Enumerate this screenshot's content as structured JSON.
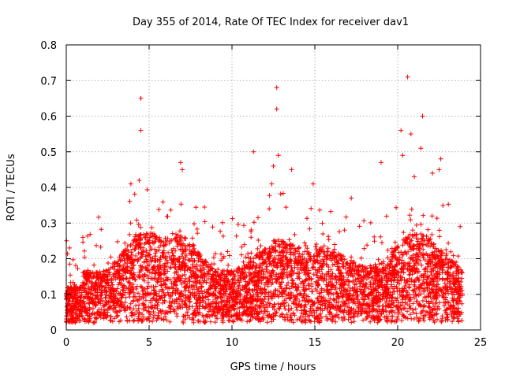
{
  "chart_data": {
    "type": "scatter",
    "title": "Day 355 of 2014, Rate Of TEC Index for receiver dav1",
    "xlabel": "GPS time / hours",
    "ylabel": "ROTI / TECUs",
    "xlim": [
      0,
      25
    ],
    "ylim": [
      0,
      0.8
    ],
    "xticks": [
      0,
      5,
      10,
      15,
      20,
      25
    ],
    "yticks": [
      0,
      0.1,
      0.2,
      0.3,
      0.4,
      0.5,
      0.6,
      0.7,
      0.8
    ],
    "xtick_labels": [
      "0",
      "5",
      "10",
      "15",
      "20",
      "25"
    ],
    "ytick_labels": [
      "0",
      "0.1",
      "0.2",
      "0.3",
      "0.4",
      "0.5",
      "0.6",
      "0.7",
      "0.8"
    ],
    "grid": true,
    "marker": "plus",
    "color": "#ff0000",
    "x_range_hours": [
      0,
      23.9
    ],
    "point_count": 6500,
    "notable_outliers": [
      {
        "x": 4.5,
        "y": 0.65
      },
      {
        "x": 4.5,
        "y": 0.56
      },
      {
        "x": 12.7,
        "y": 0.68
      },
      {
        "x": 12.7,
        "y": 0.62
      },
      {
        "x": 20.6,
        "y": 0.71
      },
      {
        "x": 21.5,
        "y": 0.6
      },
      {
        "x": 20.2,
        "y": 0.56
      },
      {
        "x": 20.8,
        "y": 0.55
      },
      {
        "x": 11.3,
        "y": 0.5
      },
      {
        "x": 12.8,
        "y": 0.49
      },
      {
        "x": 12.5,
        "y": 0.46
      },
      {
        "x": 21.4,
        "y": 0.51
      },
      {
        "x": 19.0,
        "y": 0.47
      },
      {
        "x": 6.9,
        "y": 0.47
      },
      {
        "x": 7.0,
        "y": 0.45
      },
      {
        "x": 13.6,
        "y": 0.45
      },
      {
        "x": 20.3,
        "y": 0.49
      },
      {
        "x": 22.6,
        "y": 0.48
      },
      {
        "x": 22.5,
        "y": 0.45
      },
      {
        "x": 4.4,
        "y": 0.42
      },
      {
        "x": 12.4,
        "y": 0.41
      },
      {
        "x": 3.9,
        "y": 0.41
      },
      {
        "x": 14.9,
        "y": 0.41
      },
      {
        "x": 21.0,
        "y": 0.43
      },
      {
        "x": 22.1,
        "y": 0.44
      },
      {
        "x": 1.0,
        "y": 0.26
      },
      {
        "x": 0.2,
        "y": 0.23
      },
      {
        "x": 17.2,
        "y": 0.37
      }
    ]
  }
}
